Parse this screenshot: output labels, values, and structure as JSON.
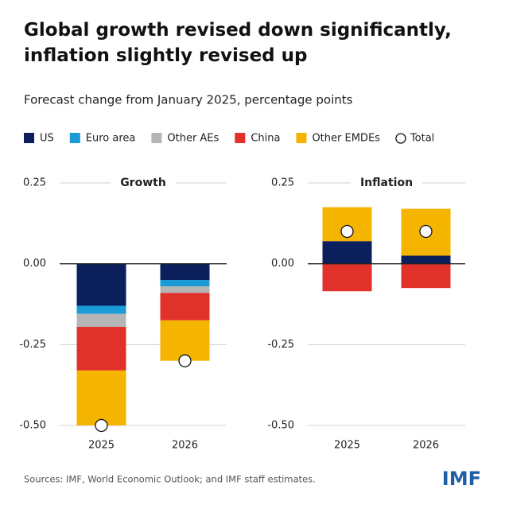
{
  "title": "Global growth revised down significantly, inflation slightly revised up",
  "subtitle": "Forecast change from January 2025, percentage points",
  "source": "Sources: IMF, World Economic Outlook; and IMF staff estimates.",
  "logo": "IMF",
  "chart_data": [
    {
      "type": "bar",
      "stacked": true,
      "title": "Growth",
      "categories": [
        "2025",
        "2026"
      ],
      "series": [
        {
          "name": "US",
          "color": "#0b1f5c",
          "values": [
            -0.13,
            -0.05
          ]
        },
        {
          "name": "Euro area",
          "color": "#1a9bd7",
          "values": [
            -0.025,
            -0.02
          ]
        },
        {
          "name": "Other AEs",
          "color": "#b5b5b5",
          "values": [
            -0.04,
            -0.02
          ]
        },
        {
          "name": "China",
          "color": "#e0322b",
          "values": [
            -0.135,
            -0.085
          ]
        },
        {
          "name": "Other EMDEs",
          "color": "#f5b400",
          "values": [
            -0.17,
            -0.125
          ]
        }
      ],
      "totals": {
        "name": "Total",
        "values": [
          -0.5,
          -0.3
        ]
      },
      "ylim": [
        -0.5,
        0.25
      ],
      "yticks": [
        0.25,
        {
          "value": 0,
          "label": "0.00"
        },
        -0.25,
        {
          "value": -0.5,
          "label": "-0.50"
        }
      ]
    },
    {
      "type": "bar",
      "stacked": true,
      "title": "Inflation",
      "categories": [
        "2025",
        "2026"
      ],
      "series": [
        {
          "name": "US",
          "color": "#0b1f5c",
          "values": [
            0.07,
            0.025
          ]
        },
        {
          "name": "Euro area",
          "color": "#1a9bd7",
          "values": [
            0,
            0
          ]
        },
        {
          "name": "Other AEs",
          "color": "#b5b5b5",
          "values": [
            0,
            0
          ]
        },
        {
          "name": "China",
          "color": "#e0322b",
          "values": [
            -0.085,
            -0.075
          ]
        },
        {
          "name": "Other EMDEs",
          "color": "#f5b400",
          "values": [
            0.105,
            0.145
          ]
        }
      ],
      "totals": {
        "name": "Total",
        "values": [
          0.1,
          0.1
        ]
      },
      "ylim": [
        -0.5,
        0.25
      ],
      "yticks": [
        0.25,
        {
          "value": 0,
          "label": "0.00"
        },
        -0.25,
        {
          "value": -0.5,
          "label": "-0.50"
        }
      ]
    }
  ]
}
